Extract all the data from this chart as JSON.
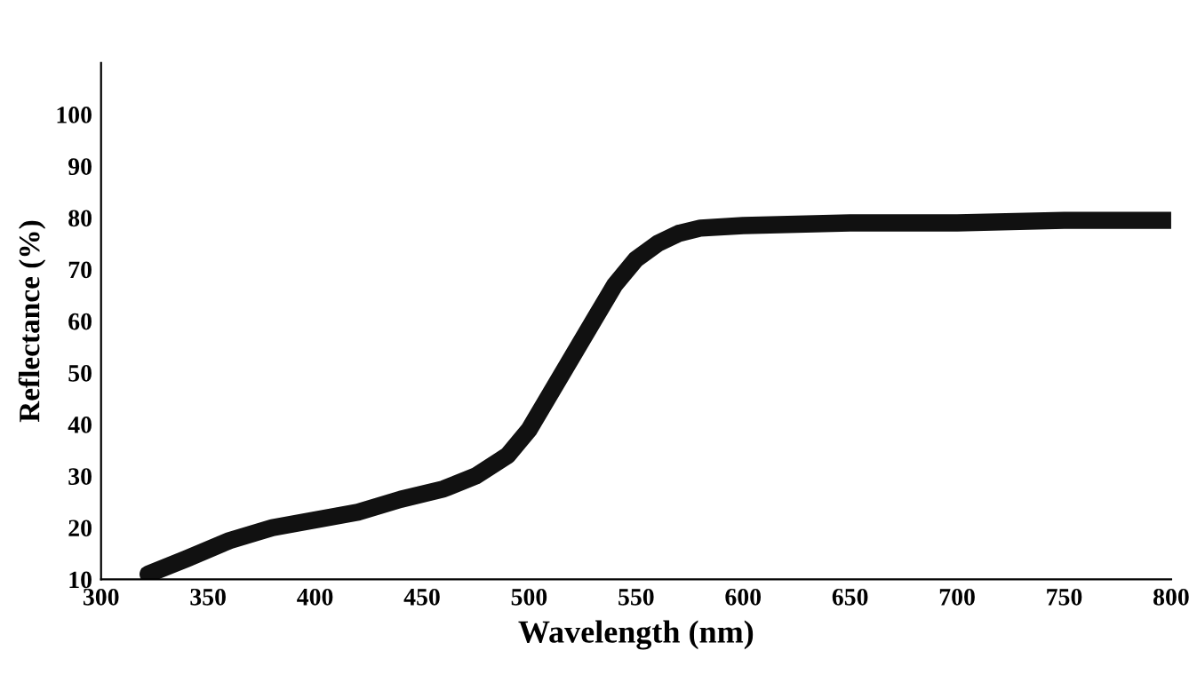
{
  "chart_data": {
    "type": "line",
    "xlabel": "Wavelength (nm)",
    "ylabel": "Reflectance (%)",
    "x": [
      322,
      340,
      360,
      380,
      400,
      420,
      440,
      460,
      475,
      490,
      500,
      510,
      520,
      530,
      540,
      550,
      560,
      570,
      580,
      600,
      650,
      700,
      750,
      800
    ],
    "series": [
      {
        "color": "#111111",
        "values": [
          11,
          14,
          17.5,
          20,
          21.5,
          23,
          25.5,
          27.5,
          30,
          34,
          39,
          46,
          53,
          60,
          67,
          72,
          75,
          77,
          78,
          78.5,
          79,
          79,
          79.5,
          79.5
        ]
      }
    ],
    "xlim": [
      300,
      800
    ],
    "ylim": [
      10,
      110
    ],
    "xticks": [
      300,
      350,
      400,
      450,
      500,
      550,
      600,
      650,
      700,
      750,
      800
    ],
    "yticks": [
      10,
      20,
      30,
      40,
      50,
      60,
      70,
      80,
      90,
      100
    ],
    "grid": false,
    "legend": false,
    "marker": "none",
    "line_style": "solid"
  }
}
